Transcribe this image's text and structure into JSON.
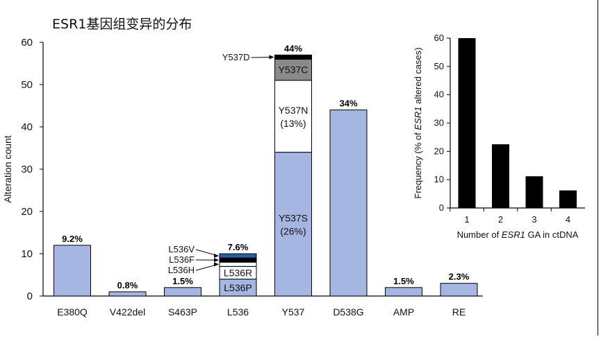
{
  "page": {
    "title": "ESR1基因组变异的分布"
  },
  "chart_data": [
    {
      "type": "bar",
      "ylabel": "Alteration count",
      "xlabel": "",
      "ylim": [
        0,
        60
      ],
      "yticks": [
        0,
        10,
        20,
        30,
        40,
        50,
        60
      ],
      "categories": [
        "E380Q",
        "V422del",
        "S463P",
        "L536",
        "Y537",
        "D538G",
        "AMP",
        "RE"
      ],
      "values": [
        12,
        1,
        2,
        10,
        57,
        44,
        2,
        3
      ],
      "percent_labels": [
        "9.2%",
        "0.8%",
        "1.5%",
        "7.6%",
        "44%",
        "34%",
        "1.5%",
        "2.3%"
      ],
      "colors": {
        "bar": "#a4b6e1",
        "white": "#ffffff",
        "gray": "#8a8a8a",
        "black": "#000000",
        "blue": "#2a5fa8"
      },
      "stacks": [
        {
          "category": "L536",
          "segments": [
            {
              "name": "L536P",
              "value": 4,
              "color": "#a4b6e1",
              "label": "L536P"
            },
            {
              "name": "L536R",
              "value": 3,
              "color": "#ffffff",
              "label": "L536R"
            },
            {
              "name": "L536H",
              "value": 1,
              "color": "#ffffff",
              "callout": "L536H"
            },
            {
              "name": "L536F",
              "value": 1,
              "color": "#000000",
              "callout": "L536F"
            },
            {
              "name": "L536V",
              "value": 1,
              "color": "#2a5fa8",
              "callout": "L536V"
            }
          ]
        },
        {
          "category": "Y537",
          "segments": [
            {
              "name": "Y537S",
              "value": 34,
              "color": "#a4b6e1",
              "label": "Y537S",
              "sublabel": "(26%)"
            },
            {
              "name": "Y537N",
              "value": 17,
              "color": "#ffffff",
              "label": "Y537N",
              "sublabel": "(13%)"
            },
            {
              "name": "Y537C",
              "value": 5,
              "color": "#8a8a8a",
              "label": "Y537C"
            },
            {
              "name": "Y537D",
              "value": 1,
              "color": "#000000",
              "callout": "Y537D"
            }
          ]
        }
      ]
    },
    {
      "type": "bar",
      "xlabel_parts": [
        "Number of ",
        "ESR1",
        " GA in ctDNA"
      ],
      "ylabel_parts": [
        "Frequency (% of ",
        "ESR1",
        " altered cases)"
      ],
      "ylim": [
        0,
        60
      ],
      "yticks": [
        0,
        10,
        20,
        30,
        40,
        50,
        60
      ],
      "categories": [
        "1",
        "2",
        "3",
        "4"
      ],
      "values": [
        60,
        22.5,
        11.2,
        6.2
      ],
      "bar_color": "#000000"
    }
  ]
}
